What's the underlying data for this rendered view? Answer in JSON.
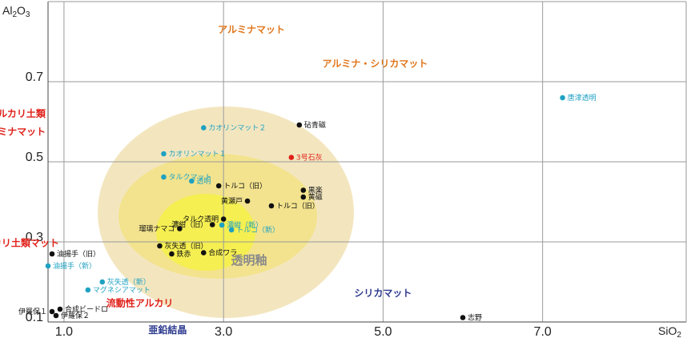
{
  "colors": {
    "black": "#111111",
    "cyan": "#1fa2c2",
    "red": "#e0211b",
    "orange": "#e0761c",
    "navy": "#2e3b8f",
    "gray": "#8a8a8a",
    "ellipse_outer": "#f3e6bf",
    "ellipse_mid": "#f3e38e",
    "ellipse_inner": "#f5ef52"
  },
  "chart_data": {
    "type": "scatter",
    "xlabel": "SiO2",
    "ylabel": "Al2O3",
    "xlim": [
      0.8,
      8.8
    ],
    "ylim": [
      0.1,
      0.9
    ],
    "x_ticks": [
      {
        "value": 1.0,
        "label": "1.0"
      },
      {
        "value": 3.0,
        "label": "3.0"
      },
      {
        "value": 5.0,
        "label": "5.0"
      },
      {
        "value": 7.0,
        "label": "7.0"
      }
    ],
    "y_ticks": [
      {
        "value": 0.1,
        "label": "0.1"
      },
      {
        "value": 0.3,
        "label": "0.3"
      },
      {
        "value": 0.5,
        "label": "0.5"
      },
      {
        "value": 0.7,
        "label": "0.7"
      }
    ],
    "grid": true,
    "points": [
      {
        "label": "砧青磁",
        "x": 3.95,
        "y": 0.592,
        "color": "black",
        "side": "right"
      },
      {
        "label": "3号石灰",
        "x": 3.85,
        "y": 0.511,
        "color": "red",
        "side": "right"
      },
      {
        "label": "黒楽",
        "x": 4.0,
        "y": 0.429,
        "color": "black",
        "side": "right"
      },
      {
        "label": "黄磁",
        "x": 4.0,
        "y": 0.412,
        "color": "black",
        "side": "right"
      },
      {
        "label": "トルコ（旧）",
        "x": 2.94,
        "y": 0.44,
        "color": "black",
        "side": "right"
      },
      {
        "label": "黄瀬戸",
        "x": 3.3,
        "y": 0.402,
        "color": "black",
        "side": "left"
      },
      {
        "label": "トルコ（旧）",
        "x": 3.6,
        "y": 0.39,
        "color": "black",
        "side": "right"
      },
      {
        "label": "タルク透明",
        "x": 3.0,
        "y": 0.357,
        "color": "black",
        "side": "left"
      },
      {
        "label": "瑠璃ナマコ",
        "x": 2.45,
        "y": 0.333,
        "color": "black",
        "side": "left"
      },
      {
        "label": "濃紺（旧）",
        "x": 2.86,
        "y": 0.343,
        "color": "black",
        "side": "left"
      },
      {
        "label": "灰失透（旧）",
        "x": 2.2,
        "y": 0.29,
        "color": "black",
        "side": "right"
      },
      {
        "label": "鉄赤",
        "x": 2.35,
        "y": 0.27,
        "color": "black",
        "side": "right"
      },
      {
        "label": "合成ワラ",
        "x": 2.75,
        "y": 0.273,
        "color": "black",
        "side": "right"
      },
      {
        "label": "志野",
        "x": 6.0,
        "y": 0.111,
        "color": "black",
        "side": "right"
      },
      {
        "label": "油揚手（旧）",
        "x": 0.85,
        "y": 0.27,
        "color": "black",
        "side": "right"
      },
      {
        "label": "伊羅保１",
        "x": 0.85,
        "y": 0.126,
        "color": "black",
        "side": "left"
      },
      {
        "label": "合成ビードロ",
        "x": 0.95,
        "y": 0.132,
        "color": "black",
        "side": "right"
      },
      {
        "label": "伊羅保２",
        "x": 0.9,
        "y": 0.116,
        "color": "black",
        "side": "right"
      },
      {
        "label": "唐津透明",
        "x": 7.25,
        "y": 0.66,
        "color": "cyan",
        "side": "right"
      },
      {
        "label": "カオリンマット２",
        "x": 2.75,
        "y": 0.585,
        "color": "cyan",
        "side": "right"
      },
      {
        "label": "カオリンマット１",
        "x": 2.25,
        "y": 0.52,
        "color": "cyan",
        "side": "right"
      },
      {
        "label": "タルクマット",
        "x": 2.25,
        "y": 0.462,
        "color": "cyan",
        "side": "right"
      },
      {
        "label": "透明",
        "x": 2.6,
        "y": 0.452,
        "color": "cyan",
        "side": "right"
      },
      {
        "label": "濃紺（新）",
        "x": 2.98,
        "y": 0.342,
        "color": "cyan",
        "side": "right"
      },
      {
        "label": "トルコ（新）",
        "x": 3.1,
        "y": 0.33,
        "color": "cyan",
        "side": "right"
      },
      {
        "label": "油揚手（新）",
        "x": 0.8,
        "y": 0.24,
        "color": "cyan",
        "side": "right"
      },
      {
        "label": "灰失透（新）",
        "x": 1.48,
        "y": 0.2,
        "color": "cyan",
        "side": "right"
      },
      {
        "label": "マグネシアマット",
        "x": 1.3,
        "y": 0.18,
        "color": "cyan",
        "side": "right"
      }
    ],
    "regions": [
      {
        "label": "アルミナマット",
        "x": 3.35,
        "y": 0.83,
        "color": "orange",
        "size": 12
      },
      {
        "label": "アルミナ・シリカマット",
        "x": 4.9,
        "y": 0.745,
        "color": "orange",
        "size": 12
      },
      {
        "label": "高アルカリ土類",
        "x": 0.35,
        "y": 0.62,
        "color": "red",
        "size": 12
      },
      {
        "label": "アルミナマット",
        "x": 0.35,
        "y": 0.575,
        "color": "red",
        "size": 12
      },
      {
        "label": "アルカリ土類マット",
        "x": 0.4,
        "y": 0.297,
        "color": "red",
        "size": 12
      },
      {
        "label": "流動性アルカリ",
        "x": 1.95,
        "y": 0.147,
        "color": "red",
        "size": 12
      },
      {
        "label": "シリカマット",
        "x": 5.0,
        "y": 0.172,
        "color": "navy",
        "size": 12
      },
      {
        "label": "亜鉛結晶",
        "x": 2.3,
        "y": 0.08,
        "color": "navy",
        "size": 12
      },
      {
        "label": "透明釉",
        "x": 3.32,
        "y": 0.252,
        "color": "gray",
        "size": 15
      }
    ]
  }
}
